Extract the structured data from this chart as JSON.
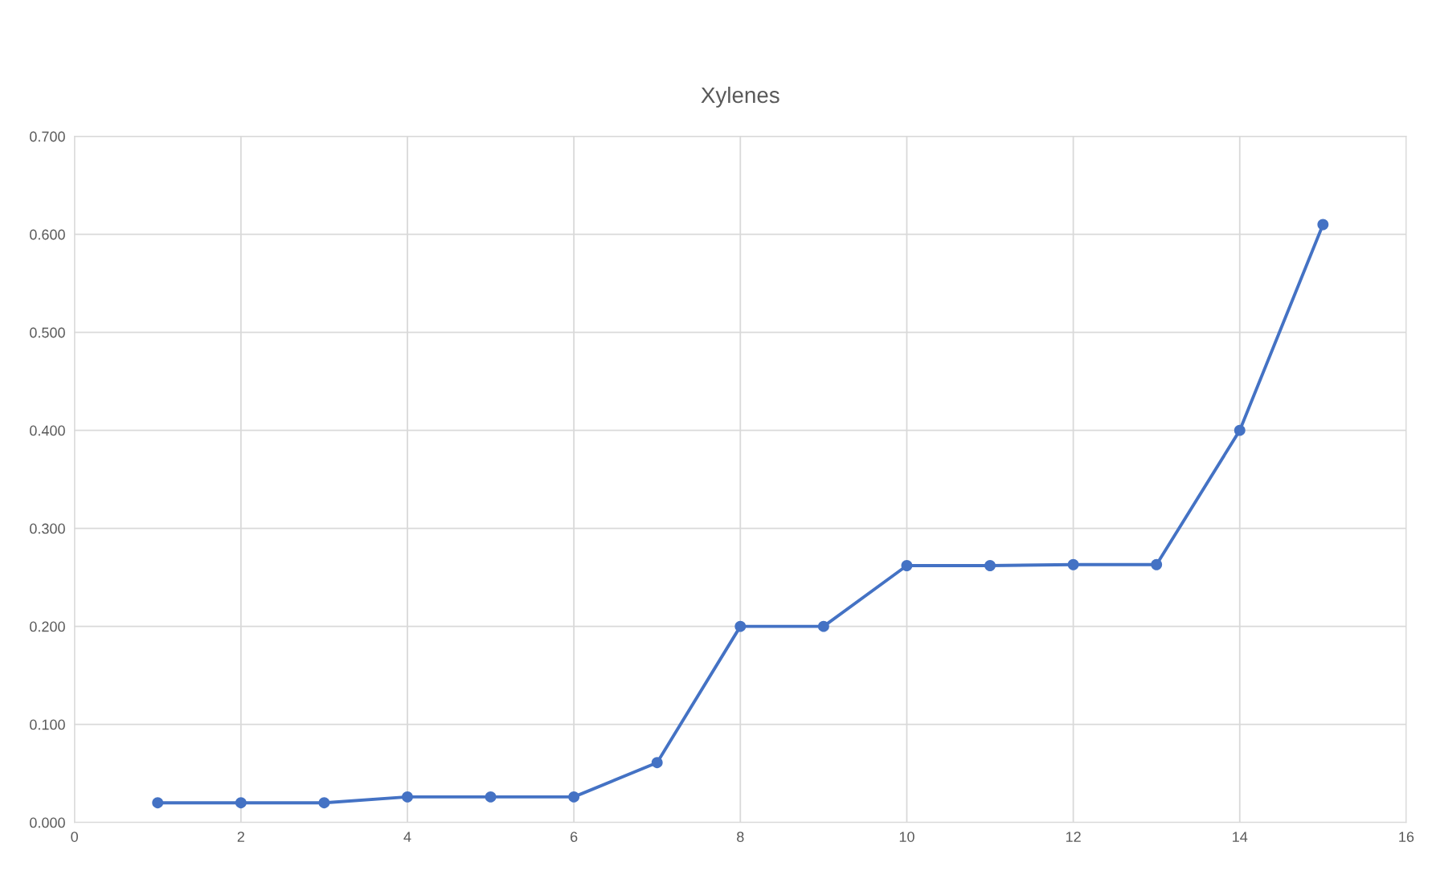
{
  "chart_data": {
    "type": "line",
    "title": "Xylenes",
    "x": [
      1,
      2,
      3,
      4,
      5,
      6,
      7,
      8,
      9,
      10,
      11,
      12,
      13,
      14,
      15
    ],
    "series": [
      {
        "color": "#4472c4",
        "values": [
          0.02,
          0.02,
          0.02,
          0.026,
          0.026,
          0.026,
          0.061,
          0.2,
          0.2,
          0.262,
          0.262,
          0.263,
          0.263,
          0.4,
          0.61
        ]
      }
    ],
    "xlim": [
      0,
      16
    ],
    "xticks": [
      0,
      2,
      4,
      6,
      8,
      10,
      12,
      14,
      16
    ],
    "ylim": [
      0,
      0.7
    ],
    "yticks": [
      {
        "value": 0,
        "label": "0.000"
      },
      {
        "value": 0.1,
        "label": "0.100"
      },
      {
        "value": 0.2,
        "label": "0.200"
      },
      {
        "value": 0.3,
        "label": "0.300"
      },
      {
        "value": 0.4,
        "label": "0.400"
      },
      {
        "value": 0.5,
        "label": "0.500"
      },
      {
        "value": 0.6,
        "label": "0.600"
      },
      {
        "value": 0.7,
        "label": "0.700"
      }
    ],
    "grid": true,
    "marker": "circle",
    "line_style": "solid"
  }
}
